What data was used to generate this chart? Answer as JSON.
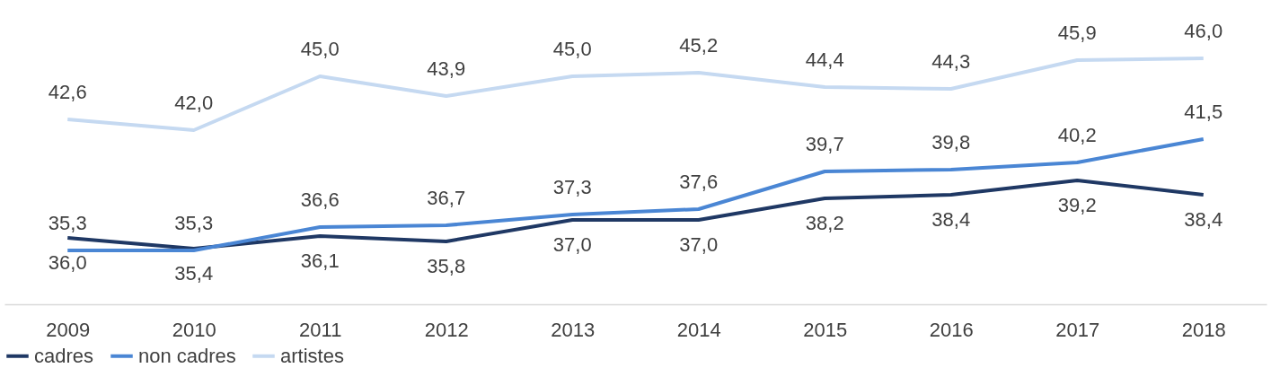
{
  "chart_data": {
    "type": "line",
    "categories": [
      "2009",
      "2010",
      "2011",
      "2012",
      "2013",
      "2014",
      "2015",
      "2016",
      "2017",
      "2018"
    ],
    "series": [
      {
        "name": "cadres",
        "color": "#1f3864",
        "values": [
          36.0,
          35.4,
          36.1,
          35.8,
          37.0,
          37.0,
          38.2,
          38.4,
          39.2,
          38.4
        ],
        "value_labels": [
          "36,0",
          "35,4",
          "36,1",
          "35,8",
          "37,0",
          "37,0",
          "38,2",
          "38,4",
          "39,2",
          "38,4"
        ]
      },
      {
        "name": "non cadres",
        "color": "#4a86d4",
        "values": [
          35.3,
          35.3,
          36.6,
          36.7,
          37.3,
          37.6,
          39.7,
          39.8,
          40.2,
          41.5
        ],
        "value_labels": [
          "35,3",
          "35,3",
          "36,6",
          "36,7",
          "37,3",
          "37,6",
          "39,7",
          "39,8",
          "40,2",
          "41,5"
        ]
      },
      {
        "name": "artistes",
        "color": "#c5d9f1",
        "values": [
          42.6,
          42.0,
          45.0,
          43.9,
          45.0,
          45.2,
          44.4,
          44.3,
          45.9,
          46.0
        ],
        "value_labels": [
          "42,6",
          "42,0",
          "45,0",
          "43,9",
          "45,0",
          "45,2",
          "44,4",
          "44,3",
          "45,9",
          "46,0"
        ]
      }
    ],
    "tick_labels": "x",
    "grid": false,
    "legend": "bottom",
    "marker": "none",
    "line_style": "solid"
  }
}
